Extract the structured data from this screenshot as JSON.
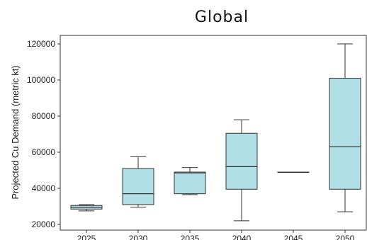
{
  "chart_data": {
    "type": "boxplot",
    "title": "Global",
    "xlabel": "",
    "ylabel": "Projected Cu Demand (metric kt)",
    "ylim": [
      18000,
      125000
    ],
    "yticks": [
      20000,
      40000,
      60000,
      80000,
      100000,
      120000
    ],
    "ytick_labels": [
      "20000",
      "40000",
      "60000",
      "80000",
      "100000",
      "120000"
    ],
    "categories": [
      "2025",
      "2030",
      "2035",
      "2040",
      "2045",
      "2050"
    ],
    "box_color": "#b0e0e6",
    "edge_color": "#333333",
    "series": [
      {
        "values": [
          {
            "min": 27500,
            "q1": 28500,
            "median": 29500,
            "q3": 30500,
            "max": 31000
          },
          {
            "min": 29500,
            "q1": 31000,
            "median": 37000,
            "q3": 51000,
            "max": 57500
          },
          {
            "min": 36500,
            "q1": 37000,
            "median": 48500,
            "q3": 49000,
            "max": 51500
          },
          {
            "min": 22000,
            "q1": 39500,
            "median": 52000,
            "q3": 70500,
            "max": 78000
          },
          {
            "min": 49000,
            "q1": 49000,
            "median": 49000,
            "q3": 49000,
            "max": 49000
          },
          {
            "min": 27000,
            "q1": 39500,
            "median": 63000,
            "q3": 101000,
            "max": 120000
          }
        ]
      }
    ]
  }
}
